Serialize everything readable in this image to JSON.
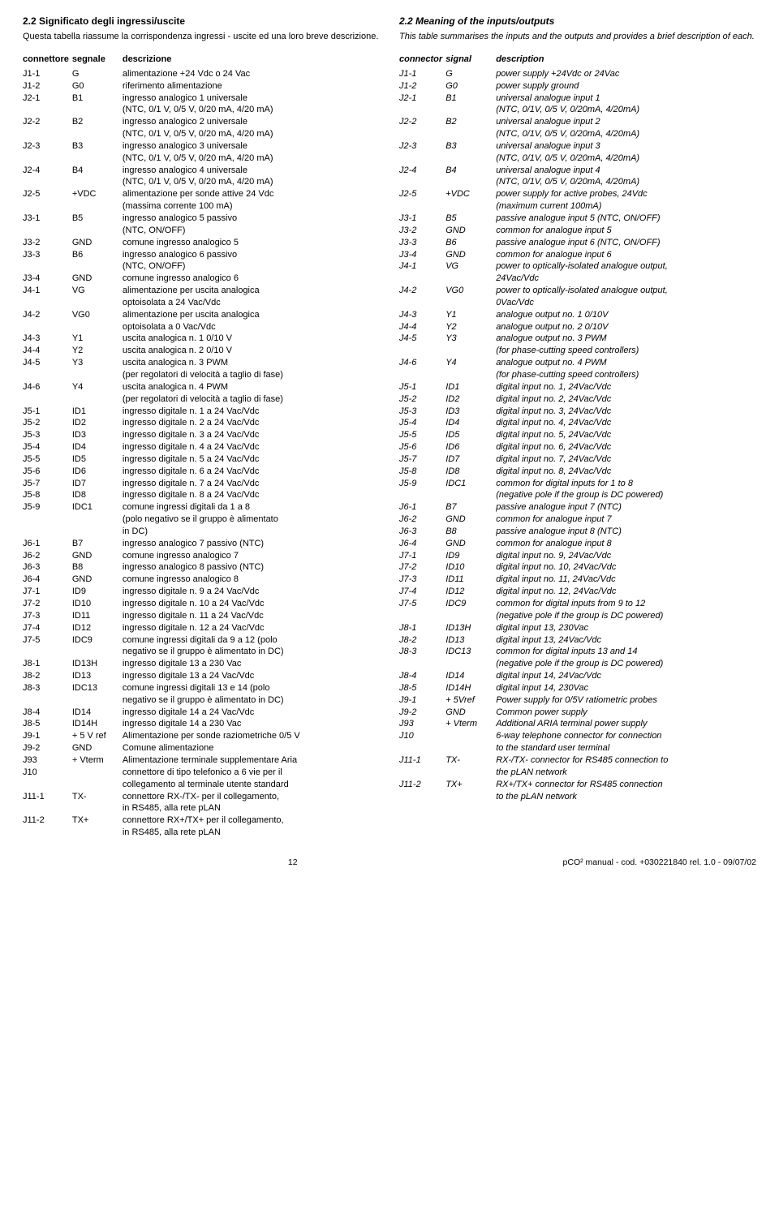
{
  "left": {
    "title": "2.2 Significato degli ingressi/uscite",
    "desc": "Questa tabella riassume la corrispondenza ingressi - uscite ed una loro breve descrizione.",
    "headers": [
      "connettore",
      "segnale",
      "descrizione"
    ],
    "rows": [
      [
        "J1-1",
        "G",
        "alimentazione +24 Vdc o 24 Vac"
      ],
      [
        "J1-2",
        "G0",
        "riferimento alimentazione"
      ],
      [
        "J2-1",
        "B1",
        "ingresso analogico 1 universale\n(NTC, 0/1 V, 0/5 V, 0/20 mA, 4/20 mA)"
      ],
      [
        "J2-2",
        "B2",
        "ingresso analogico 2 universale\n(NTC, 0/1 V, 0/5 V, 0/20 mA, 4/20 mA)"
      ],
      [
        "J2-3",
        "B3",
        "ingresso analogico 3 universale\n(NTC, 0/1 V, 0/5 V, 0/20 mA, 4/20 mA)"
      ],
      [
        "J2-4",
        "B4",
        "ingresso analogico 4 universale\n(NTC, 0/1 V, 0/5 V, 0/20 mA, 4/20 mA)"
      ],
      [
        "J2-5",
        "+VDC",
        "alimentazione per sonde attive 24 Vdc\n(massima corrente 100 mA)"
      ],
      [
        "J3-1",
        "B5",
        "ingresso analogico 5 passivo\n(NTC, ON/OFF)"
      ],
      [
        "J3-2",
        "GND",
        "comune ingresso analogico 5"
      ],
      [
        "J3-3",
        "B6",
        "ingresso analogico 6 passivo\n(NTC, ON/OFF)"
      ],
      [
        "J3-4",
        "GND",
        "comune ingresso analogico 6"
      ],
      [
        "J4-1",
        "VG",
        "alimentazione per uscita analogica\noptoisolata a 24 Vac/Vdc"
      ],
      [
        "J4-2",
        "VG0",
        "alimentazione per uscita analogica\noptoisolata a 0 Vac/Vdc"
      ],
      [
        "J4-3",
        "Y1",
        "uscita analogica n. 1 0/10 V"
      ],
      [
        "J4-4",
        "Y2",
        "uscita analogica n. 2 0/10 V"
      ],
      [
        "J4-5",
        "Y3",
        "uscita analogica n. 3  PWM\n(per regolatori di velocità a taglio di fase)"
      ],
      [
        "J4-6",
        "Y4",
        "uscita analogica n. 4  PWM\n(per regolatori di velocità a taglio di fase)"
      ],
      [
        "J5-1",
        "ID1",
        "ingresso digitale n. 1 a 24 Vac/Vdc"
      ],
      [
        "J5-2",
        "ID2",
        "ingresso digitale n. 2 a 24 Vac/Vdc"
      ],
      [
        "J5-3",
        "ID3",
        "ingresso digitale n. 3 a 24 Vac/Vdc"
      ],
      [
        "J5-4",
        "ID4",
        "ingresso digitale n. 4 a 24 Vac/Vdc"
      ],
      [
        "J5-5",
        "ID5",
        "ingresso digitale n. 5 a 24 Vac/Vdc"
      ],
      [
        "J5-6",
        "ID6",
        "ingresso digitale n. 6 a 24 Vac/Vdc"
      ],
      [
        "J5-7",
        "ID7",
        "ingresso digitale n. 7 a 24 Vac/Vdc"
      ],
      [
        "J5-8",
        "ID8",
        "ingresso digitale n. 8 a 24 Vac/Vdc"
      ],
      [
        "J5-9",
        "IDC1",
        "comune ingressi digitali da 1 a 8\n(polo negativo se il gruppo è alimentato\nin DC)"
      ],
      [
        "J6-1",
        "B7",
        "ingresso analogico 7 passivo (NTC)"
      ],
      [
        "J6-2",
        "GND",
        "comune ingresso analogico 7"
      ],
      [
        "J6-3",
        "B8",
        "ingresso analogico 8 passivo (NTC)"
      ],
      [
        "J6-4",
        "GND",
        "comune ingresso analogico 8"
      ],
      [
        "J7-1",
        "ID9",
        "ingresso digitale n. 9 a 24 Vac/Vdc"
      ],
      [
        "J7-2",
        "ID10",
        "ingresso digitale n. 10 a 24 Vac/Vdc"
      ],
      [
        "J7-3",
        "ID11",
        "ingresso digitale n. 11 a 24 Vac/Vdc"
      ],
      [
        "J7-4",
        "ID12",
        "ingresso digitale n. 12 a 24 Vac/Vdc"
      ],
      [
        "J7-5",
        "IDC9",
        "comune ingressi digitali da 9 a 12 (polo\nnegativo se il gruppo è alimentato in DC)"
      ],
      [
        "J8-1",
        "ID13H",
        "ingresso digitale 13 a 230 Vac"
      ],
      [
        "J8-2",
        "ID13",
        "ingresso digitale 13 a 24 Vac/Vdc"
      ],
      [
        "J8-3",
        "IDC13",
        "comune ingressi digitali 13 e 14 (polo\nnegativo se il gruppo è alimentato in DC)"
      ],
      [
        "J8-4",
        "ID14",
        "ingresso digitale 14 a 24 Vac/Vdc"
      ],
      [
        "J8-5",
        "ID14H",
        "ingresso digitale 14 a 230 Vac"
      ],
      [
        "J9-1",
        "+ 5 V ref",
        "Alimentazione per sonde raziometriche 0/5 V"
      ],
      [
        "J9-2",
        "GND",
        "Comune alimentazione"
      ],
      [
        "J93",
        "+ Vterm",
        "Alimentazione terminale supplementare Aria"
      ],
      [
        "J10",
        "",
        "connettore di tipo telefonico a 6 vie per il\ncollegamento al terminale utente standard"
      ],
      [
        "J11-1",
        "TX-",
        "connettore RX-/TX- per il collegamento,\nin RS485, alla rete pLAN"
      ],
      [
        "J11-2",
        "TX+",
        "connettore RX+/TX+ per il collegamento,\nin RS485, alla rete pLAN"
      ]
    ]
  },
  "right": {
    "title": "2.2 Meaning of the inputs/outputs",
    "desc": "This table summarises the inputs and the outputs and provides a brief description of each.",
    "headers": [
      "connector",
      "signal",
      "description"
    ],
    "rows": [
      [
        "J1-1",
        "G",
        "power supply +24Vdc or 24Vac"
      ],
      [
        "J1-2",
        "G0",
        "power supply ground"
      ],
      [
        "J2-1",
        "B1",
        "universal analogue input 1\n(NTC, 0/1V, 0/5 V, 0/20mA, 4/20mA)"
      ],
      [
        "J2-2",
        "B2",
        "universal analogue input 2\n(NTC, 0/1V, 0/5 V, 0/20mA, 4/20mA)"
      ],
      [
        "J2-3",
        "B3",
        "universal analogue input 3\n(NTC, 0/1V, 0/5 V, 0/20mA, 4/20mA)"
      ],
      [
        "J2-4",
        "B4",
        "universal analogue input 4\n(NTC, 0/1V, 0/5 V, 0/20mA, 4/20mA)"
      ],
      [
        "J2-5",
        "+VDC",
        "power supply for active probes, 24Vdc\n(maximum current 100mA)"
      ],
      [
        "J3-1",
        "B5",
        "passive analogue input 5 (NTC, ON/OFF)"
      ],
      [
        "J3-2",
        "GND",
        "common for analogue input 5"
      ],
      [
        "J3-3",
        "B6",
        "passive analogue input 6 (NTC, ON/OFF)"
      ],
      [
        "J3-4",
        "GND",
        "common for analogue input 6"
      ],
      [
        "J4-1",
        "VG",
        "power to optically-isolated analogue output,\n24Vac/Vdc"
      ],
      [
        "J4-2",
        "VG0",
        "power to optically-isolated analogue output,\n0Vac/Vdc"
      ],
      [
        "J4-3",
        "Y1",
        "analogue output no. 1 0/10V"
      ],
      [
        "J4-4",
        "Y2",
        "analogue output no. 2 0/10V"
      ],
      [
        "J4-5",
        "Y3",
        "analogue output no. 3 PWM\n(for phase-cutting speed controllers)"
      ],
      [
        "J4-6",
        "Y4",
        "analogue output no. 4 PWM\n(for phase-cutting speed controllers)"
      ],
      [
        "J5-1",
        "ID1",
        "digital input no. 1, 24Vac/Vdc"
      ],
      [
        "J5-2",
        "ID2",
        "digital input no. 2, 24Vac/Vdc"
      ],
      [
        "J5-3",
        "ID3",
        "digital input no. 3, 24Vac/Vdc"
      ],
      [
        "J5-4",
        "ID4",
        "digital input no. 4, 24Vac/Vdc"
      ],
      [
        "J5-5",
        "ID5",
        "digital input no. 5, 24Vac/Vdc"
      ],
      [
        "J5-6",
        "ID6",
        "digital input no. 6, 24Vac/Vdc"
      ],
      [
        "J5-7",
        "ID7",
        "digital input no. 7, 24Vac/Vdc"
      ],
      [
        "J5-8",
        "ID8",
        "digital input no. 8, 24Vac/Vdc"
      ],
      [
        "J5-9",
        "IDC1",
        "common for digital inputs for 1 to 8\n(negative pole if the group is DC powered)"
      ],
      [
        "J6-1",
        "B7",
        "passive analogue input 7 (NTC)"
      ],
      [
        "J6-2",
        "GND",
        "common for analogue input 7"
      ],
      [
        "J6-3",
        "B8",
        "passive analogue input 8 (NTC)"
      ],
      [
        "J6-4",
        "GND",
        "common for analogue input 8"
      ],
      [
        "J7-1",
        "ID9",
        "digital input no. 9, 24Vac/Vdc"
      ],
      [
        "J7-2",
        "ID10",
        "digital input no. 10, 24Vac/Vdc"
      ],
      [
        "J7-3",
        "ID11",
        "digital input no. 11, 24Vac/Vdc"
      ],
      [
        "J7-4",
        "ID12",
        "digital input no. 12, 24Vac/Vdc"
      ],
      [
        "J7-5",
        "IDC9",
        "common for digital inputs from 9 to 12\n(negative pole if the group is DC powered)"
      ],
      [
        "J8-1",
        "ID13H",
        "digital input 13, 230Vac"
      ],
      [
        "J8-2",
        "ID13",
        "digital input 13, 24Vac/Vdc"
      ],
      [
        "J8-3",
        "IDC13",
        "common for digital inputs 13 and 14\n(negative pole if the group is DC powered)"
      ],
      [
        "J8-4",
        "ID14",
        "digital input 14, 24Vac/Vdc"
      ],
      [
        "J8-5",
        "ID14H",
        "digital input 14, 230Vac"
      ],
      [
        "J9-1",
        "+ 5Vref",
        "Power supply for 0/5V ratiometric probes"
      ],
      [
        "J9-2",
        "GND",
        "Common power supply"
      ],
      [
        "J93",
        "+ Vterm",
        "Additional ARIA terminal power supply"
      ],
      [
        "J10",
        "",
        "6-way telephone connector for connection\nto the standard user terminal"
      ],
      [
        "J11-1",
        "TX-",
        "RX-/TX- connector for RS485 connection to\nthe pLAN network"
      ],
      [
        "J11-2",
        "TX+",
        "RX+/TX+ connector for RS485 connection\nto the pLAN network"
      ]
    ]
  },
  "footer": {
    "page": "12",
    "info": "pCO² manual - cod. +030221840  rel. 1.0 - 09/07/02"
  }
}
